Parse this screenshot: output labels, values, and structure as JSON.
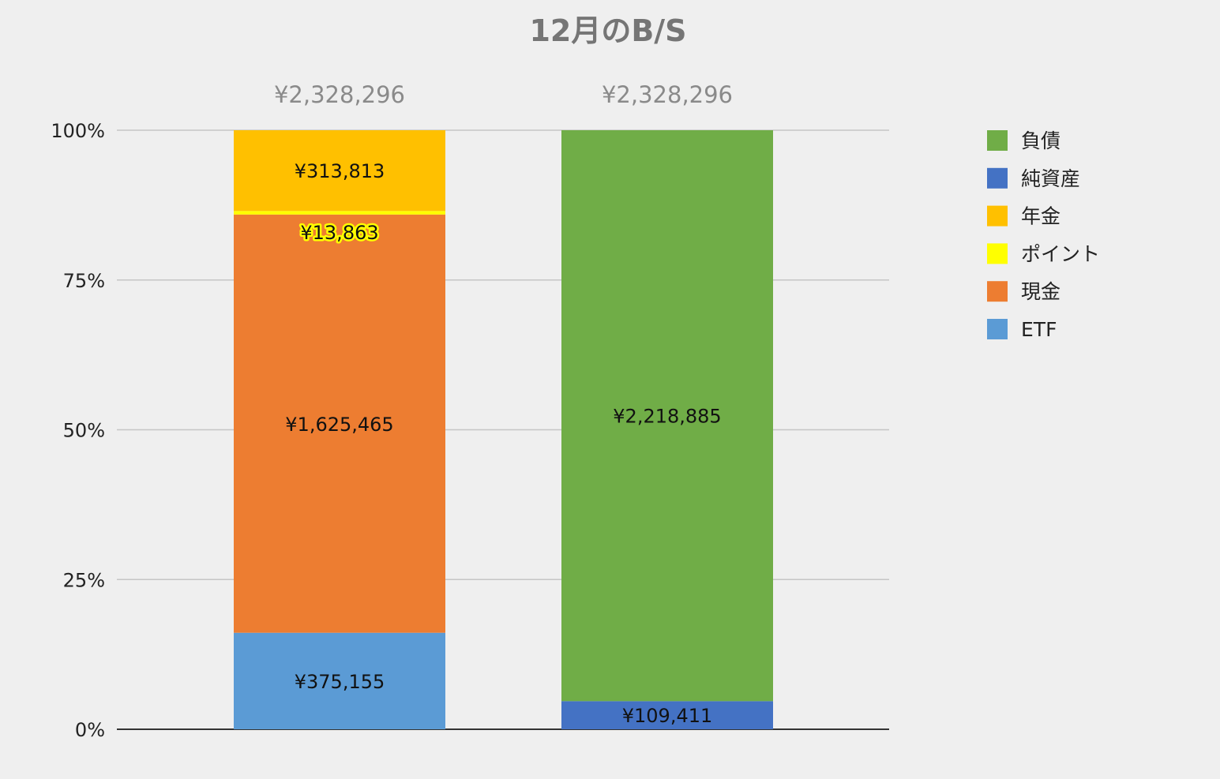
{
  "chart_data": {
    "type": "bar",
    "stacked": "percent",
    "title": "12月のB/S",
    "categories": [
      "",
      ""
    ],
    "totals": [
      "¥2,328,296",
      "¥2,328,296"
    ],
    "y_ticks": [
      "0%",
      "25%",
      "50%",
      "75%",
      "100%"
    ],
    "ylim": [
      0,
      100
    ],
    "legend_position": "right",
    "grid": true,
    "series": [
      {
        "name": "ETF",
        "color": "#5b9bd5",
        "values": [
          375155,
          0
        ],
        "labels": [
          "¥375,155",
          ""
        ]
      },
      {
        "name": "現金",
        "color": "#ed7d31",
        "values": [
          1625465,
          0
        ],
        "labels": [
          "¥1,625,465",
          ""
        ]
      },
      {
        "name": "ポイント",
        "color": "#ffff00",
        "values": [
          13863,
          0
        ],
        "labels": [
          "¥13,863",
          ""
        ]
      },
      {
        "name": "年金",
        "color": "#ffc000",
        "values": [
          313813,
          0
        ],
        "labels": [
          "¥313,813",
          ""
        ]
      },
      {
        "name": "純資産",
        "color": "#4472c4",
        "values": [
          0,
          109411
        ],
        "labels": [
          "",
          "¥109,411"
        ]
      },
      {
        "name": "負債",
        "color": "#70ad47",
        "values": [
          0,
          2218885
        ],
        "labels": [
          "",
          "¥2,218,885"
        ]
      }
    ],
    "legend_order": [
      "負債",
      "純資産",
      "年金",
      "ポイント",
      "現金",
      "ETF"
    ]
  }
}
